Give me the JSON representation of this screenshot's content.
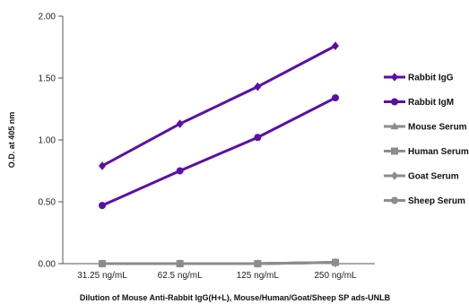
{
  "chart_data": {
    "type": "line",
    "title": "",
    "xlabel": "Dilution of Mouse Anti-Rabbit IgG(H+L), Mouse/Human/Goat/Sheep SP ads-UNLB",
    "ylabel": "O.D. at 405 nm",
    "categories": [
      "31.25 ng/mL",
      "62.5 ng/mL",
      "125 ng/mL",
      "250 ng/mL"
    ],
    "ylim": [
      0,
      2.0
    ],
    "yticks": [
      "0.00",
      "0.50",
      "1.00",
      "1.50",
      "2.00"
    ],
    "grid": false,
    "legend_position": "right",
    "series": [
      {
        "name": "Rabbit IgG",
        "values": [
          0.79,
          1.13,
          1.43,
          1.76
        ],
        "color": "#5b0fa8",
        "marker": "diamond"
      },
      {
        "name": "Rabbit IgM",
        "values": [
          0.47,
          0.75,
          1.02,
          1.34
        ],
        "color": "#5b0fa8",
        "marker": "circle"
      },
      {
        "name": "Mouse Serum",
        "values": [
          0.0,
          0.0,
          0.0,
          0.01
        ],
        "color": "#8c8c8c",
        "marker": "triangle"
      },
      {
        "name": "Human Serum",
        "values": [
          0.0,
          0.0,
          0.0,
          0.01
        ],
        "color": "#8c8c8c",
        "marker": "square"
      },
      {
        "name": "Goat Serum",
        "values": [
          0.0,
          0.0,
          0.0,
          0.01
        ],
        "color": "#8c8c8c",
        "marker": "diamond"
      },
      {
        "name": "Sheep Serum",
        "values": [
          0.0,
          0.0,
          0.0,
          0.01
        ],
        "color": "#8c8c8c",
        "marker": "circle"
      }
    ]
  }
}
